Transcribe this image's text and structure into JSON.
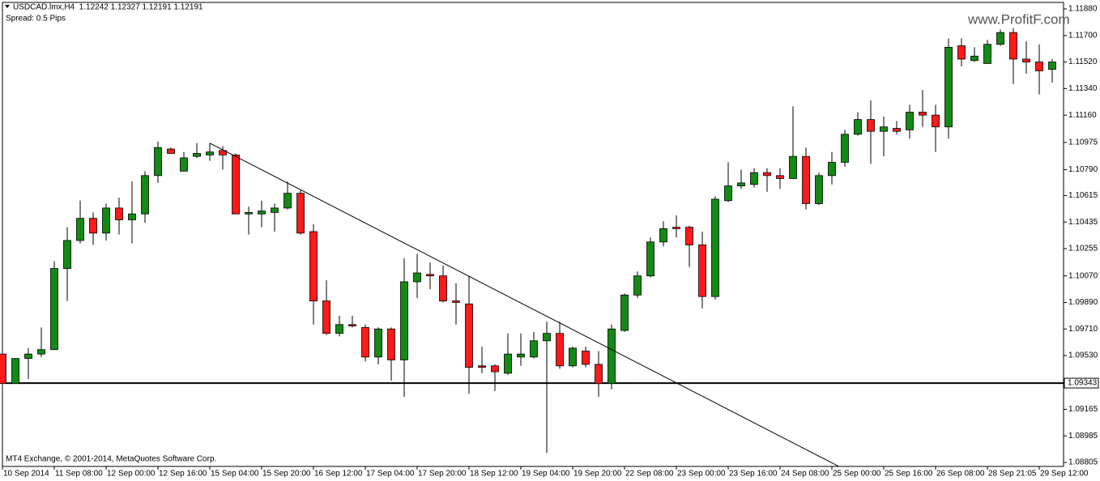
{
  "chart_data": {
    "type": "candlestick",
    "title": "USDCAD.lmx,H4  1.12242 1.12327 1.12191 1.12191",
    "subtitle": "Spread: 0.5 Pips",
    "footer": "MT4 Exchange, © 2001-2014, MetaQuotes Software Corp.",
    "watermark": "www.ProfitF.com",
    "up_color": "#138a13",
    "down_color": "#ff1a1a",
    "categories": [
      "10 Sep 2014",
      null,
      null,
      null,
      "11 Sep 08:00",
      null,
      null,
      null,
      "12 Sep 00:00",
      null,
      null,
      null,
      "12 Sep 16:00",
      null,
      null,
      null,
      "15 Sep 04:00",
      null,
      null,
      null,
      "15 Sep 20:00",
      null,
      null,
      null,
      "16 Sep 12:00",
      null,
      null,
      null,
      "17 Sep 04:00",
      null,
      null,
      null,
      "17 Sep 20:00",
      null,
      null,
      null,
      "18 Sep 12:00",
      null,
      null,
      null,
      "19 Sep 04:00",
      null,
      null,
      null,
      "19 Sep 20:00",
      null,
      null,
      null,
      "22 Sep 08:00",
      null,
      null,
      null,
      "23 Sep 00:00",
      null,
      null,
      null,
      "23 Sep 16:00",
      null,
      null,
      null,
      "24 Sep 08:00",
      null,
      null,
      null,
      "25 Sep 00:00",
      null,
      null,
      null,
      "25 Sep 16:00",
      null,
      null,
      null,
      "26 Sep 08:00",
      null,
      null,
      null,
      "28 Sep 21:05",
      null,
      null,
      null,
      "29 Sep 12:00",
      null
    ],
    "open": [
      1.0954,
      1.0934,
      1.0951,
      1.0954,
      1.0957,
      1.1012,
      1.1031,
      1.1046,
      1.1036,
      1.1053,
      1.1045,
      1.1049,
      1.1075,
      1.1093,
      1.1078,
      1.1088,
      1.1089,
      1.1092,
      1.1089,
      1.1049,
      1.1049,
      1.105,
      1.1053,
      1.1063,
      1.1037,
      1.099,
      1.0968,
      1.0974,
      1.0972,
      1.0952,
      1.0971,
      1.095,
      1.1003,
      1.1008,
      1.1007,
      1.099,
      1.0988,
      1.0946,
      1.0946,
      1.0941,
      1.0952,
      1.0952,
      1.0963,
      1.0968,
      1.0946,
      1.0956,
      1.0947,
      1.0934,
      1.097,
      1.0994,
      1.1007,
      1.103,
      1.104,
      1.104,
      1.1028,
      1.0993,
      1.1058,
      1.1068,
      1.1069,
      1.1077,
      1.1075,
      1.1073,
      1.1088,
      1.1056,
      1.1075,
      1.1084,
      1.1103,
      1.1113,
      1.1105,
      1.1107,
      1.1106,
      1.1118,
      1.1116,
      1.1108,
      1.1163,
      1.1153,
      1.1151,
      1.1164,
      1.1172,
      1.1154,
      1.1152,
      1.1147
    ],
    "high": [
      1.0963,
      1.0951,
      1.0958,
      1.0972,
      1.1017,
      1.104,
      1.1058,
      1.105,
      1.1056,
      1.106,
      1.1071,
      1.1078,
      1.1098,
      1.1094,
      1.1091,
      1.1097,
      1.1097,
      1.1095,
      1.109,
      1.1054,
      1.1058,
      1.1056,
      1.1071,
      1.1065,
      1.1042,
      1.1004,
      1.098,
      1.098,
      1.0974,
      1.0972,
      1.0972,
      1.1019,
      1.1022,
      1.1016,
      1.1014,
      1.1002,
      1.1007,
      1.0959,
      1.0947,
      1.0968,
      1.0968,
      1.0969,
      1.0976,
      1.0976,
      1.0959,
      1.0959,
      1.0956,
      1.0974,
      1.0995,
      1.101,
      1.1033,
      1.1044,
      1.1048,
      1.1041,
      1.1037,
      1.1061,
      1.1084,
      1.1079,
      1.108,
      1.108,
      1.108,
      1.1122,
      1.1094,
      1.1077,
      1.1091,
      1.1106,
      1.1118,
      1.1126,
      1.1115,
      1.1112,
      1.1123,
      1.1133,
      1.1123,
      1.1168,
      1.1168,
      1.1162,
      1.1167,
      1.1174,
      1.1175,
      1.1166,
      1.1164,
      1.1154
    ],
    "low": [
      1.0934,
      1.0934,
      1.0937,
      1.0952,
      1.0957,
      1.099,
      1.1029,
      1.1028,
      1.1031,
      1.1035,
      1.1029,
      1.1043,
      1.107,
      1.109,
      1.1078,
      1.1087,
      1.1085,
      1.1079,
      1.1049,
      1.1035,
      1.104,
      1.1037,
      1.1052,
      1.1035,
      1.0974,
      1.0967,
      1.0966,
      1.0972,
      1.0949,
      1.0947,
      1.0936,
      1.0925,
      1.0992,
      1.0998,
      1.0989,
      1.0974,
      1.0927,
      1.0941,
      1.0929,
      1.094,
      1.0946,
      1.0951,
      1.0887,
      1.0944,
      1.0945,
      1.0945,
      1.0925,
      1.093,
      1.0969,
      1.0992,
      1.1006,
      1.1027,
      1.1033,
      1.1013,
      1.0985,
      1.0991,
      1.1057,
      1.1066,
      1.1067,
      1.1064,
      1.1066,
      1.1073,
      1.1052,
      1.1055,
      1.1069,
      1.1081,
      1.1102,
      1.1083,
      1.1088,
      1.1103,
      1.11,
      1.1108,
      1.1091,
      1.11,
      1.1149,
      1.1152,
      1.1151,
      1.1163,
      1.1137,
      1.1144,
      1.113,
      1.1138
    ],
    "close": [
      1.0934,
      1.0951,
      1.0954,
      1.0957,
      1.1012,
      1.1031,
      1.1046,
      1.1036,
      1.1053,
      1.1045,
      1.1049,
      1.1075,
      1.1094,
      1.109,
      1.1087,
      1.109,
      1.1091,
      1.1089,
      1.1049,
      1.105,
      1.1051,
      1.1053,
      1.1063,
      1.1036,
      1.099,
      1.0968,
      1.0974,
      1.0973,
      1.0952,
      1.0971,
      1.095,
      1.1003,
      1.1009,
      1.1007,
      1.099,
      1.0989,
      1.0945,
      1.0945,
      1.0942,
      1.0954,
      1.0954,
      1.0963,
      1.0968,
      1.0946,
      1.0958,
      1.0947,
      1.0934,
      1.0971,
      1.0994,
      1.1007,
      1.103,
      1.1039,
      1.1039,
      1.1028,
      1.0993,
      1.1059,
      1.1068,
      1.107,
      1.1077,
      1.1075,
      1.1073,
      1.1088,
      1.1056,
      1.1075,
      1.1084,
      1.1103,
      1.1113,
      1.1105,
      1.1108,
      1.1105,
      1.1118,
      1.1116,
      1.1108,
      1.1162,
      1.1154,
      1.1156,
      1.1164,
      1.1172,
      1.1154,
      1.1152,
      1.1146,
      1.1152
    ],
    "ylim": [
      1.08778,
      1.11924
    ],
    "yticks": [
      {
        "value": 1.1188,
        "label": "1.11880"
      },
      {
        "value": 1.117,
        "label": "1.11700"
      },
      {
        "value": 1.1152,
        "label": "1.11520"
      },
      {
        "value": 1.1134,
        "label": "1.11340"
      },
      {
        "value": 1.1116,
        "label": "1.11160"
      },
      {
        "value": 1.10975,
        "label": "1.10975"
      },
      {
        "value": 1.1079,
        "label": "1.10790"
      },
      {
        "value": 1.10615,
        "label": "1.10615"
      },
      {
        "value": 1.10435,
        "label": "1.10435"
      },
      {
        "value": 1.10255,
        "label": "1.10255"
      },
      {
        "value": 1.1007,
        "label": "1.10070"
      },
      {
        "value": 1.0989,
        "label": "1.09890"
      },
      {
        "value": 1.0971,
        "label": "1.09710"
      },
      {
        "value": 1.0953,
        "label": "1.09530"
      },
      {
        "value": 1.09165,
        "label": "1.09165"
      },
      {
        "value": 1.08985,
        "label": "1.08985"
      },
      {
        "value": 1.08805,
        "label": "1.08805"
      }
    ],
    "price_line": 1.09343,
    "trendline": {
      "x": [
        16,
        64.5
      ],
      "y": [
        1.1097,
        1.0878
      ]
    }
  }
}
